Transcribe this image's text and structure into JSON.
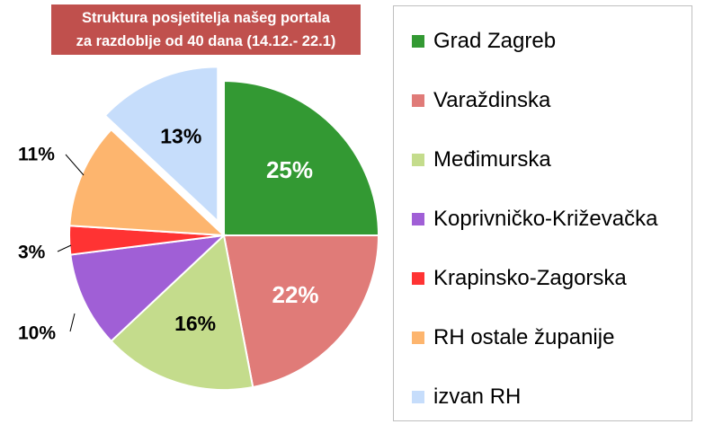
{
  "title": {
    "line1": "Struktura posjetitelja našeg portala",
    "line2": "za razdoblje od 40 dana (14.12.- 22.1)"
  },
  "colors": {
    "title_bg": "#c0504d"
  },
  "chart_data": {
    "type": "pie",
    "title": "Struktura posjetitelja našeg portala za razdoblje od 40 dana (14.12.- 22.1)",
    "legend_position": "right",
    "slices": [
      {
        "name": "Grad Zagreb",
        "value": 25,
        "label": "25%",
        "color": "#339933",
        "label_color": "#ffffff",
        "label_placement": "inside",
        "exploded": false
      },
      {
        "name": "Varaždinska",
        "value": 22,
        "label": "22%",
        "color": "#e07b78",
        "label_color": "#ffffff",
        "label_placement": "inside",
        "exploded": false
      },
      {
        "name": "Međimurska",
        "value": 16,
        "label": "16%",
        "color": "#c4dc8c",
        "label_color": "#000000",
        "label_placement": "inside",
        "exploded": false
      },
      {
        "name": "Koprivničko-Križevačka",
        "value": 10,
        "label": "10%",
        "color": "#a05fd6",
        "label_color": "#000000",
        "label_placement": "outside",
        "exploded": false
      },
      {
        "name": "Krapinsko-Zagorska",
        "value": 3,
        "label": "3%",
        "color": "#ff3333",
        "label_color": "#000000",
        "label_placement": "outside",
        "exploded": false
      },
      {
        "name": "RH ostale županije",
        "value": 11,
        "label": "11%",
        "color": "#fdb56e",
        "label_color": "#000000",
        "label_placement": "outside",
        "exploded": false
      },
      {
        "name": "izvan RH",
        "value": 13,
        "label": "13%",
        "color": "#c6ddfb",
        "label_color": "#000000",
        "label_placement": "inside",
        "exploded": true
      }
    ]
  }
}
